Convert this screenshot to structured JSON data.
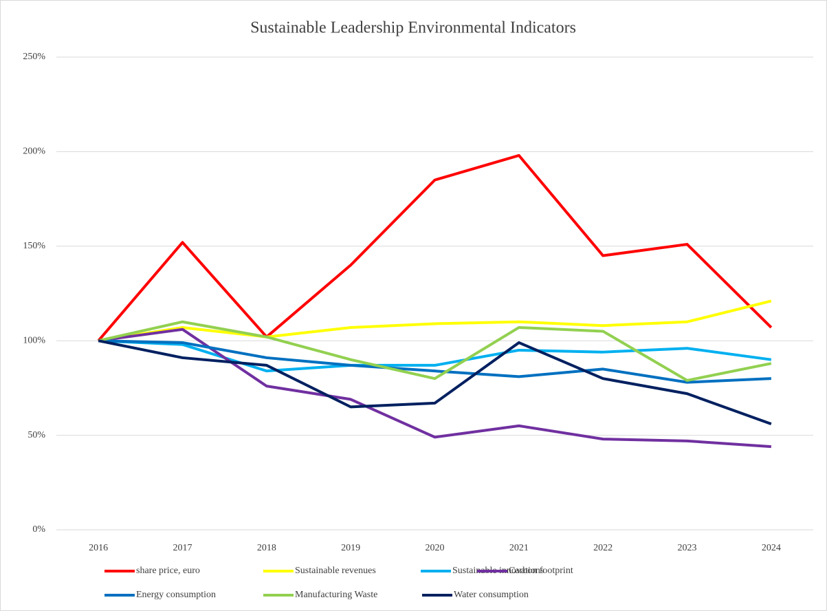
{
  "chart_data": {
    "type": "line",
    "title": "Sustainable Leadership Environmental Indicators",
    "categories": [
      "2016",
      "2017",
      "2018",
      "2019",
      "2020",
      "2021",
      "2022",
      "2023",
      "2024"
    ],
    "series": [
      {
        "name": "share price, euro",
        "color": "#ff0000",
        "values": [
          100,
          152,
          102,
          140,
          185,
          198,
          145,
          151,
          107
        ]
      },
      {
        "name": "Sustainable revenues",
        "color": "#ffff00",
        "values": [
          100,
          107,
          102,
          107,
          109,
          110,
          108,
          110,
          121
        ]
      },
      {
        "name": "Sustainable innovations",
        "color": "#00b0f0",
        "values": [
          100,
          98,
          84,
          87,
          87,
          95,
          94,
          96,
          90
        ]
      },
      {
        "name": "Carbon footprint",
        "color": "#7030a0",
        "values": [
          100,
          106,
          76,
          69,
          49,
          55,
          48,
          47,
          44
        ]
      },
      {
        "name": "Energy consumption",
        "color": "#0070c0",
        "values": [
          100,
          99,
          91,
          87,
          84,
          81,
          85,
          78,
          80
        ]
      },
      {
        "name": "Manufacturing  Waste",
        "color": "#92d050",
        "values": [
          100,
          110,
          102,
          90,
          80,
          107,
          105,
          79,
          88
        ]
      },
      {
        "name": "Water consumption",
        "color": "#002060",
        "values": [
          100,
          91,
          87,
          65,
          67,
          99,
          80,
          72,
          56
        ]
      }
    ],
    "ylim": [
      0,
      250
    ],
    "yticks": [
      {
        "value": 0,
        "label": "0%"
      },
      {
        "value": 50,
        "label": "50%"
      },
      {
        "value": 100,
        "label": "100%"
      },
      {
        "value": 150,
        "label": "150%"
      },
      {
        "value": 200,
        "label": "200%"
      },
      {
        "value": 250,
        "label": "250%"
      }
    ],
    "grid": true,
    "legend": "bottom"
  }
}
